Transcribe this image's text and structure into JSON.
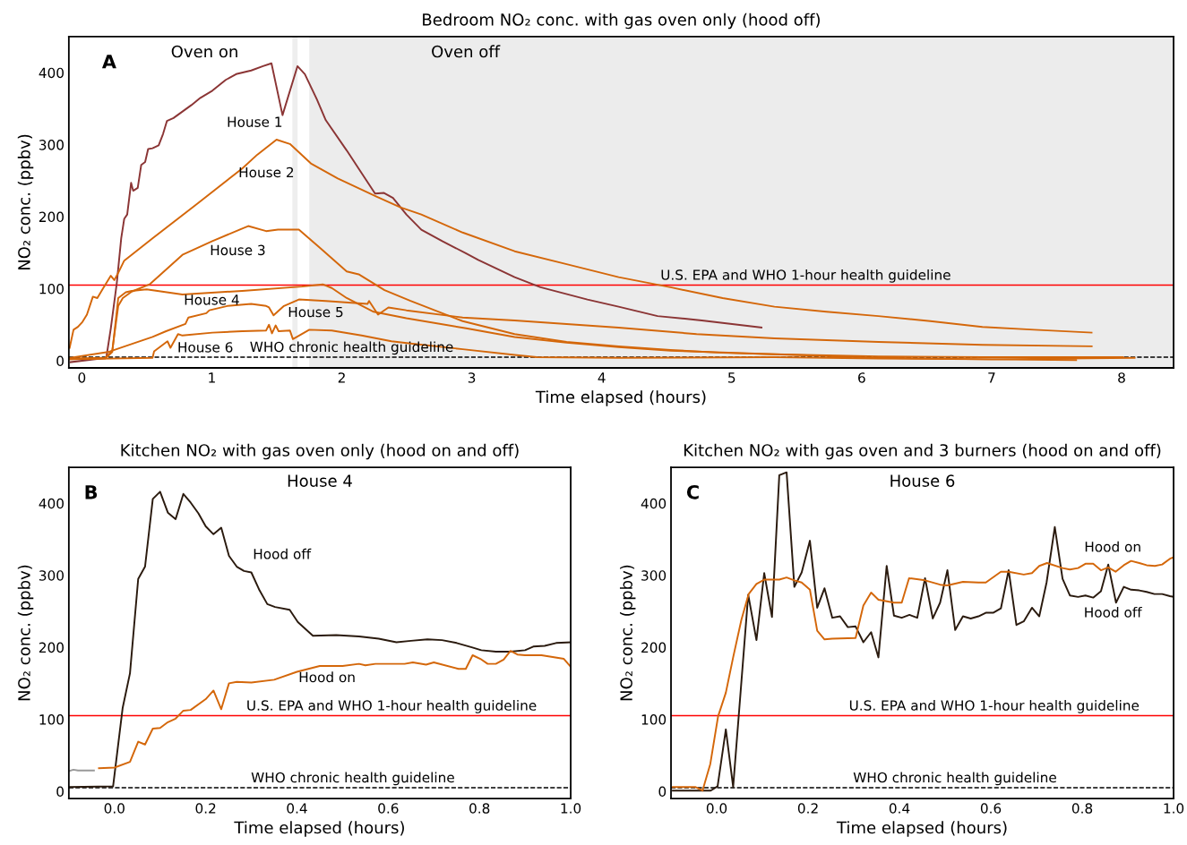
{
  "chart_data": [
    {
      "type": "line",
      "title": "Bedroom NO₂ conc. with gas oven only (hood off)",
      "xlabel": "Time elapsed (hours)",
      "ylabel": "NO₂ conc. (ppbv)",
      "xlim": [
        -0.1,
        8.4
      ],
      "ylim": [
        -10,
        450
      ],
      "xticks": [
        0,
        1,
        2,
        3,
        4,
        5,
        6,
        7,
        8
      ],
      "yticks": [
        0,
        100,
        200,
        300,
        400
      ],
      "series": [
        {
          "name": "House 1",
          "color": "#8b3535",
          "x": [
            -0.087,
            0.188,
            0.223,
            0.269,
            0.303,
            0.326,
            0.349,
            0.379,
            0.395,
            0.43,
            0.457,
            0.487,
            0.51,
            0.544,
            0.591,
            0.625,
            0.655,
            0.705,
            0.774,
            0.843,
            0.912,
            1.004,
            1.107,
            1.187,
            1.303,
            1.394,
            1.459,
            1.544,
            1.659,
            1.716,
            1.808,
            1.877,
            2.038,
            2.256,
            2.325,
            2.394,
            2.497,
            2.612,
            2.773,
            2.957,
            3.05,
            3.33,
            3.529,
            3.89,
            4.13,
            4.43,
            4.77,
            5.229
          ],
          "values": [
            -2,
            4,
            45,
            108,
            170,
            197,
            203,
            247,
            236,
            240,
            272,
            276,
            294,
            295,
            299,
            315,
            333,
            337,
            346,
            355,
            365,
            375,
            390,
            398,
            403,
            409,
            413,
            341,
            409,
            398,
            363,
            334,
            292,
            232,
            233,
            226,
            203,
            182,
            166,
            149,
            140,
            116,
            102,
            85,
            75,
            62,
            56,
            46
          ]
        },
        {
          "name": "House 2",
          "color": "#d4670a",
          "x": [
            -0.094,
            -0.064,
            -0.03,
            0.005,
            0.039,
            0.085,
            0.119,
            0.165,
            0.223,
            0.25,
            0.28,
            0.326,
            0.544,
            0.889,
            1.234,
            1.349,
            1.498,
            1.601,
            1.762,
            1.969,
            2.267,
            2.451,
            2.612,
            2.93,
            3.33,
            3.73,
            4.13,
            4.529,
            4.93,
            5.329,
            5.729,
            6.129,
            6.529,
            6.929,
            7.329,
            7.769
          ],
          "values": [
            18,
            43,
            47,
            54,
            64,
            89,
            87,
            101,
            118,
            112,
            122,
            139,
            170,
            218,
            267,
            286,
            307,
            301,
            274,
            253,
            228,
            213,
            203,
            178,
            152,
            134,
            116,
            102,
            87,
            75,
            68,
            62,
            55,
            47,
            43,
            39
          ]
        },
        {
          "name": "House 3",
          "color": "#d4670a",
          "x": [
            -0.1,
            0.18,
            0.234,
            0.28,
            0.315,
            0.384,
            0.521,
            0.774,
            1.004,
            1.28,
            1.418,
            1.509,
            1.67,
            1.831,
            2.038,
            2.13,
            2.329,
            2.529,
            2.93,
            3.33,
            3.73,
            4.13,
            4.529,
            4.93,
            5.329,
            6.129,
            6.929,
            8.01
          ],
          "values": [
            3,
            4,
            14,
            76,
            87,
            96,
            106,
            147,
            166,
            187,
            180,
            182,
            182,
            157,
            124,
            120,
            98,
            83,
            55,
            37,
            26,
            20,
            15,
            11,
            9,
            6,
            5,
            5
          ]
        },
        {
          "name": "House 4",
          "color": "#d4670a",
          "x": [
            -0.1,
            0.18,
            0.234,
            0.28,
            0.338,
            0.384,
            0.498,
            0.774,
            1.234,
            1.693,
            1.854,
            1.923,
            2.038,
            2.245,
            2.497,
            2.957,
            3.33,
            3.73,
            4.13,
            4.53,
            5.33,
            6.13,
            6.93,
            7.65
          ],
          "values": [
            2,
            3,
            12,
            87,
            95,
            97,
            99,
            92,
            97,
            103,
            106,
            101,
            87,
            68,
            59,
            45,
            33,
            25,
            19,
            14,
            9,
            4,
            2,
            1
          ]
        },
        {
          "name": "House 5",
          "color": "#d4670a",
          "x": [
            -0.087,
            0.2,
            0.544,
            0.648,
            0.797,
            0.82,
            0.958,
            0.981,
            1.119,
            1.303,
            1.418,
            1.44,
            1.475,
            1.555,
            1.67,
            1.877,
            2.198,
            2.21,
            2.279,
            2.359,
            2.497,
            2.93,
            3.33,
            3.73,
            4.13,
            4.73,
            5.33,
            6.13,
            6.93,
            7.77
          ],
          "values": [
            4,
            12,
            33,
            41,
            51,
            60,
            66,
            70,
            76,
            79,
            76,
            74,
            63,
            76,
            85,
            83,
            79,
            83,
            64,
            74,
            70,
            60,
            56,
            51,
            46,
            37,
            31,
            26,
            22,
            20
          ]
        },
        {
          "name": "House 6",
          "color": "#d4670a",
          "x": [
            -0.087,
            0.544,
            0.556,
            0.659,
            0.682,
            0.74,
            0.774,
            1.004,
            1.234,
            1.418,
            1.44,
            1.463,
            1.491,
            1.514,
            1.601,
            1.624,
            1.75,
            1.923,
            2.152,
            2.382,
            2.53,
            2.93,
            3.33,
            3.5,
            4.13,
            5.33,
            6.13,
            7.0,
            8.1
          ],
          "values": [
            2,
            4,
            13,
            27,
            18,
            37,
            35,
            39,
            41,
            42,
            50,
            38,
            49,
            41,
            42,
            30,
            43,
            42,
            35,
            27,
            24,
            16,
            8,
            5,
            4,
            5,
            3,
            2,
            4
          ]
        }
      ],
      "ref_lines": [
        {
          "axis": "y",
          "value": 105,
          "label": "U.S. EPA and WHO 1-hour health guideline",
          "color": "#ff0000",
          "line_style": "solid"
        },
        {
          "axis": "y",
          "value": 5,
          "label": "WHO chronic health guideline",
          "color": "#000000",
          "line_style": "dashed"
        }
      ],
      "bands": [
        {
          "axis": "x",
          "from": 1.62,
          "to": 1.66,
          "color": "#eeeeee"
        },
        {
          "axis": "x",
          "from": 1.75,
          "to": 8.4,
          "color": "#ececec"
        }
      ],
      "annotations": [
        "A",
        "Oven on",
        "Oven off"
      ]
    },
    {
      "type": "line",
      "title": "Kitchen NO₂ with gas oven only (hood on and off)",
      "subtitle": "House 4",
      "xlabel": "Time elapsed (hours)",
      "ylabel": "NO₂ conc. (ppbv)",
      "xlim": [
        -0.1,
        1.0
      ],
      "ylim": [
        -10,
        450
      ],
      "xticks": [
        {
          "value": 0,
          "label": "0.0"
        },
        {
          "value": 0.2,
          "label": "0.2"
        },
        {
          "value": 0.4,
          "label": "0.4"
        },
        {
          "value": 0.6,
          "label": "0.6"
        },
        {
          "value": 0.8,
          "label": "0.8"
        },
        {
          "value": 1.0,
          "label": "1.0"
        }
      ],
      "yticks": [
        0,
        100,
        200,
        300,
        400
      ],
      "series": [
        {
          "name": "Hood off",
          "color": "#2a1a0e",
          "x": [
            -0.1,
            -0.003,
            0.018,
            0.034,
            0.052,
            0.067,
            0.084,
            0.1,
            0.117,
            0.134,
            0.151,
            0.167,
            0.184,
            0.2,
            0.217,
            0.234,
            0.251,
            0.268,
            0.284,
            0.3,
            0.318,
            0.335,
            0.352,
            0.384,
            0.402,
            0.435,
            0.486,
            0.536,
            0.579,
            0.618,
            0.65,
            0.686,
            0.718,
            0.75,
            0.783,
            0.804,
            0.836,
            0.868,
            0.9,
            0.918,
            0.943,
            0.968,
            1.0
          ],
          "values": [
            6,
            7,
            116,
            164,
            295,
            312,
            406,
            416,
            387,
            378,
            413,
            401,
            386,
            368,
            357,
            366,
            327,
            312,
            306,
            304,
            279,
            260,
            256,
            252,
            235,
            216,
            217,
            215,
            212,
            207,
            209,
            211,
            210,
            206,
            200,
            196,
            194,
            194,
            196,
            201,
            202,
            206,
            207
          ]
        },
        {
          "name": "Hood on",
          "color": "#d4670a",
          "x": [
            -0.034,
            0.0,
            0.034,
            0.052,
            0.067,
            0.084,
            0.1,
            0.117,
            0.134,
            0.151,
            0.167,
            0.2,
            0.217,
            0.234,
            0.251,
            0.268,
            0.3,
            0.35,
            0.4,
            0.45,
            0.5,
            0.536,
            0.55,
            0.572,
            0.636,
            0.654,
            0.683,
            0.7,
            0.754,
            0.77,
            0.785,
            0.802,
            0.818,
            0.836,
            0.853,
            0.868,
            0.883,
            0.9,
            0.936,
            0.985,
            1.0
          ],
          "values": [
            32,
            33,
            41,
            69,
            65,
            87,
            88,
            96,
            101,
            112,
            113,
            128,
            140,
            114,
            150,
            152,
            151,
            155,
            166,
            174,
            174,
            177,
            175,
            177,
            177,
            179,
            176,
            179,
            170,
            170,
            189,
            184,
            177,
            177,
            183,
            195,
            190,
            189,
            189,
            184,
            173
          ]
        },
        {
          "color": "#999999",
          "x": [
            -0.1,
            -0.09,
            -0.08,
            -0.06,
            -0.045
          ],
          "values": [
            28,
            30,
            29,
            29,
            29
          ]
        }
      ],
      "ref_lines": [
        {
          "axis": "y",
          "value": 105,
          "label": "U.S. EPA and WHO 1-hour health guideline",
          "color": "#ff0000",
          "line_style": "solid"
        },
        {
          "axis": "y",
          "value": 5,
          "label": "WHO chronic health guideline",
          "color": "#000000",
          "line_style": "dashed"
        }
      ],
      "annotations": [
        "B"
      ]
    },
    {
      "type": "line",
      "title": "Kitchen NO₂ with gas oven and 3 burners (hood on and off)",
      "subtitle": "House 6",
      "xlabel": "Time elapsed (hours)",
      "ylabel": "NO₂ conc. (ppbv)",
      "xlim": [
        -0.1,
        1.0
      ],
      "ylim": [
        -10,
        450
      ],
      "xticks": [
        {
          "value": 0,
          "label": "0.0"
        },
        {
          "value": 0.2,
          "label": "0.2"
        },
        {
          "value": 0.4,
          "label": "0.4"
        },
        {
          "value": 0.6,
          "label": "0.6"
        },
        {
          "value": 0.8,
          "label": "0.8"
        },
        {
          "value": 1.0,
          "label": "1.0"
        }
      ],
      "yticks": [
        0,
        100,
        200,
        300,
        400
      ],
      "series": [
        {
          "name": "Hood off",
          "color": "#2a1a0e",
          "x": [
            -0.096,
            -0.013,
            0.002,
            0.02,
            0.036,
            0.069,
            0.087,
            0.104,
            0.121,
            0.137,
            0.153,
            0.17,
            0.186,
            0.204,
            0.22,
            0.236,
            0.253,
            0.27,
            0.287,
            0.304,
            0.321,
            0.338,
            0.354,
            0.372,
            0.388,
            0.405,
            0.422,
            0.439,
            0.456,
            0.473,
            0.489,
            0.505,
            0.522,
            0.539,
            0.556,
            0.573,
            0.589,
            0.605,
            0.622,
            0.639,
            0.656,
            0.672,
            0.69,
            0.706,
            0.722,
            0.74,
            0.757,
            0.773,
            0.791,
            0.807,
            0.824,
            0.841,
            0.857,
            0.874,
            0.891,
            0.907,
            0.925,
            0.941,
            0.958,
            0.975,
            0.992,
            1.0
          ],
          "values": [
            1,
            1,
            7,
            86,
            6,
            273,
            210,
            303,
            242,
            439,
            443,
            284,
            304,
            348,
            255,
            282,
            241,
            243,
            228,
            229,
            207,
            221,
            186,
            313,
            244,
            241,
            245,
            241,
            296,
            240,
            262,
            307,
            224,
            243,
            240,
            243,
            248,
            248,
            254,
            307,
            231,
            236,
            255,
            243,
            290,
            367,
            295,
            272,
            270,
            272,
            269,
            278,
            315,
            262,
            284,
            280,
            279,
            277,
            274,
            274,
            271,
            270
          ]
        },
        {
          "name": "Hood on",
          "color": "#d4670a",
          "x": [
            -0.096,
            -0.047,
            -0.031,
            -0.014,
            0.003,
            0.02,
            0.036,
            0.054,
            0.07,
            0.087,
            0.104,
            0.137,
            0.153,
            0.17,
            0.186,
            0.204,
            0.22,
            0.236,
            0.253,
            0.304,
            0.321,
            0.338,
            0.354,
            0.388,
            0.405,
            0.421,
            0.456,
            0.489,
            0.505,
            0.539,
            0.573,
            0.589,
            0.622,
            0.639,
            0.672,
            0.69,
            0.706,
            0.723,
            0.757,
            0.773,
            0.791,
            0.807,
            0.824,
            0.841,
            0.857,
            0.873,
            0.891,
            0.907,
            0.925,
            0.941,
            0.959,
            0.975,
            0.992,
            1.0
          ],
          "values": [
            6,
            6,
            1,
            38,
            104,
            137,
            186,
            238,
            274,
            288,
            294,
            294,
            297,
            293,
            290,
            280,
            223,
            211,
            212,
            213,
            258,
            276,
            266,
            262,
            262,
            296,
            293,
            287,
            286,
            291,
            290,
            290,
            305,
            305,
            301,
            303,
            313,
            317,
            310,
            308,
            310,
            316,
            316,
            307,
            311,
            305,
            314,
            320,
            317,
            314,
            313,
            315,
            323,
            325
          ]
        }
      ],
      "ref_lines": [
        {
          "axis": "y",
          "value": 105,
          "label": "U.S. EPA and WHO 1-hour health guideline",
          "color": "#ff0000",
          "line_style": "solid"
        },
        {
          "axis": "y",
          "value": 5,
          "label": "WHO chronic health guideline",
          "color": "#000000",
          "line_style": "dashed"
        }
      ],
      "annotations": [
        "C"
      ]
    }
  ]
}
